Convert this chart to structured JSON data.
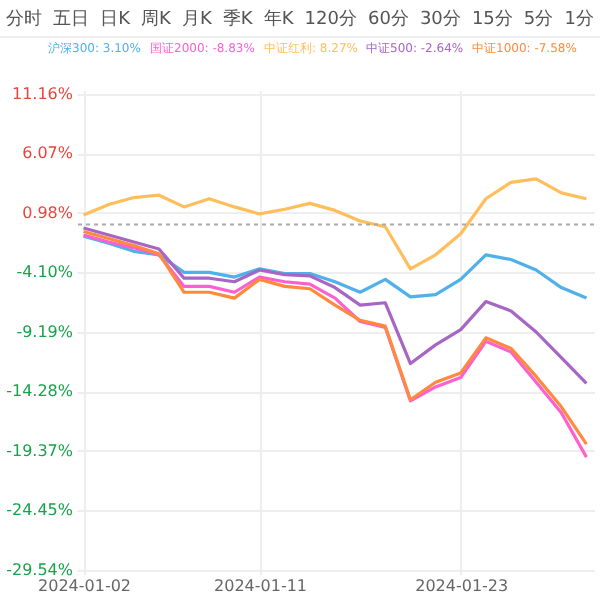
{
  "chart_data": {
    "type": "line",
    "annotations": [
      "分时",
      "五日",
      "日K",
      "周K",
      "月K",
      "季K",
      "年K",
      "120分",
      "60分",
      "30分",
      "15分",
      "5分",
      "1分"
    ],
    "categories": [
      "2024-01-02",
      null,
      null,
      null,
      null,
      null,
      null,
      "2024-01-11",
      null,
      null,
      null,
      null,
      null,
      null,
      null,
      "2024-01-23",
      null,
      null,
      null,
      null,
      null
    ],
    "series": [
      {
        "name": "沪深300: 3.10%",
        "color": "#4fb0ea",
        "values": [
          -1.0,
          -1.6,
          -2.3,
          -2.6,
          -4.1,
          -4.1,
          -4.5,
          -3.8,
          -4.2,
          -4.2,
          -4.9,
          -5.8,
          -4.7,
          -6.2,
          -6.0,
          -4.7,
          -2.6,
          -3.0,
          -3.9,
          -5.4,
          -6.3
        ]
      },
      {
        "name": "国证2000: -8.83%",
        "color": "#ff5fcf",
        "values": [
          -0.9,
          -1.5,
          -2.0,
          -2.6,
          -5.3,
          -5.3,
          -5.8,
          -4.5,
          -4.9,
          -5.1,
          -6.3,
          -8.3,
          -8.8,
          -15.1,
          -13.9,
          -13.1,
          -10.0,
          -10.9,
          -13.5,
          -16.1,
          -19.9
        ]
      },
      {
        "name": "中证红利: 8.27%",
        "color": "#ffbe5c",
        "values": [
          0.8,
          1.7,
          2.3,
          2.5,
          1.5,
          2.2,
          1.5,
          0.9,
          1.3,
          1.8,
          1.2,
          0.3,
          -0.2,
          -3.8,
          -2.6,
          -0.8,
          2.2,
          3.6,
          3.9,
          2.7,
          2.2
        ]
      },
      {
        "name": "中证500: -2.64%",
        "color": "#a765c4",
        "values": [
          -0.3,
          -0.9,
          -1.5,
          -2.1,
          -4.6,
          -4.6,
          -4.9,
          -3.9,
          -4.3,
          -4.4,
          -5.4,
          -6.9,
          -6.7,
          -11.9,
          -10.3,
          -9.0,
          -6.6,
          -7.4,
          -9.2,
          -11.4,
          -13.6
        ]
      },
      {
        "name": "中证1000: -7.58%",
        "color": "#ff8a3d",
        "values": [
          -0.6,
          -1.2,
          -1.8,
          -2.5,
          -5.8,
          -5.8,
          -6.3,
          -4.7,
          -5.3,
          -5.5,
          -6.9,
          -8.2,
          -8.7,
          -15.0,
          -13.5,
          -12.7,
          -9.7,
          -10.6,
          -13.0,
          -15.6,
          -18.8
        ]
      }
    ],
    "ylim": [
      -29.9,
      11.5
    ],
    "yticks": [
      {
        "value": 11.16,
        "label": "11.16%"
      },
      {
        "value": 6.07,
        "label": "6.07%"
      },
      {
        "value": 0.98,
        "label": "0.98%"
      },
      {
        "value": -4.1,
        "label": "-4.10%"
      },
      {
        "value": -9.19,
        "label": "-9.19%"
      },
      {
        "value": -14.28,
        "label": "-14.28%"
      },
      {
        "value": -19.37,
        "label": "-19.37%"
      },
      {
        "value": -24.45,
        "label": "-24.45%"
      },
      {
        "value": -29.54,
        "label": "-29.54%"
      }
    ],
    "ref_lines": [
      {
        "axis": "y",
        "value": 0,
        "color": "#aaaaaa",
        "line_style": "dotted"
      }
    ],
    "grid": true,
    "legend": "top",
    "marker": "none",
    "line_style": "solid"
  }
}
